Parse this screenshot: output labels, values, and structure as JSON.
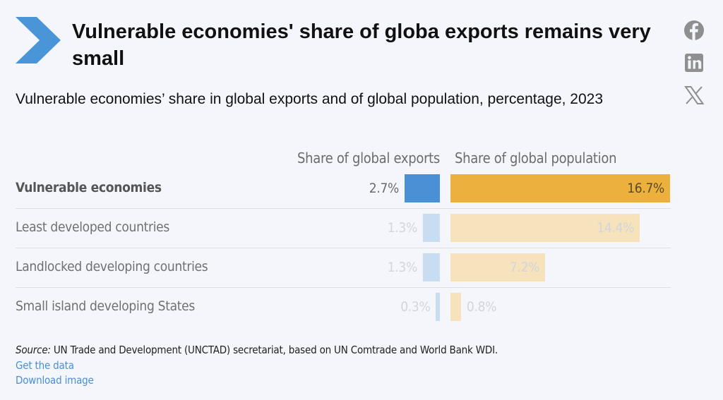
{
  "header": {
    "title": "Vulnerable economies' share of globa exports remains very small",
    "subtitle": "Vulnerable economies’ share in global exports and of global population, percentage, 2023"
  },
  "share": {
    "icons": [
      "facebook-icon",
      "linkedin-icon",
      "x-icon"
    ]
  },
  "chart_data": {
    "type": "bar",
    "orientation": "horizontal",
    "categories": [
      "Vulnerable economies",
      "Least developed countries",
      "Landlocked developing countries",
      "Small island developing States"
    ],
    "series": [
      {
        "name": "Share of global exports",
        "values": [
          2.7,
          1.3,
          1.3,
          0.3
        ],
        "color": "#4a90d4"
      },
      {
        "name": "Share of global population",
        "values": [
          16.7,
          14.4,
          7.2,
          0.8
        ],
        "color": "#ecb13c"
      }
    ],
    "value_labels": {
      "exports": [
        "2.7%",
        "1.3%",
        "1.3%",
        "0.3%"
      ],
      "population": [
        "16.7%",
        "14.4%",
        "7.2%",
        "0.8%"
      ]
    },
    "highlighted_category": "Vulnerable economies",
    "faded_colors": {
      "exports": "#c9ddf2",
      "population": "#f6e2bb"
    }
  },
  "footer": {
    "source_label": "Source:",
    "source_text": " UN Trade and Development (UNCTAD) secretariat, based on UN Comtrade and World Bank WDI.",
    "get_data": "Get the data",
    "download_image": "Download image"
  }
}
